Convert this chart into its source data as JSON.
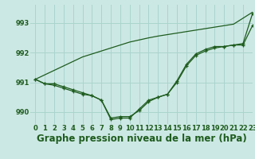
{
  "title": "Graphe pression niveau de la mer (hPa)",
  "background_color": "#cce8e4",
  "grid_color": "#aad4ce",
  "line_color": "#1e5c1e",
  "xlim": [
    -0.5,
    23
  ],
  "ylim": [
    989.6,
    993.6
  ],
  "yticks": [
    990,
    991,
    992,
    993
  ],
  "xtick_labels": [
    "0",
    "1",
    "2",
    "3",
    "4",
    "5",
    "6",
    "7",
    "8",
    "9",
    "10",
    "11",
    "12",
    "13",
    "14",
    "15",
    "16",
    "17",
    "18",
    "19",
    "20",
    "21",
    "22",
    "23"
  ],
  "series_straight": [
    991.1,
    991.25,
    991.4,
    991.55,
    991.7,
    991.85,
    991.95,
    992.05,
    992.15,
    992.25,
    992.35,
    992.42,
    992.49,
    992.55,
    992.6,
    992.65,
    992.7,
    992.75,
    992.8,
    992.85,
    992.9,
    992.95,
    993.15,
    993.35
  ],
  "series_curve1": [
    991.1,
    990.95,
    990.95,
    990.85,
    990.75,
    990.65,
    990.55,
    990.4,
    989.8,
    989.85,
    989.85,
    990.05,
    990.35,
    990.5,
    990.6,
    991.0,
    991.55,
    991.9,
    992.05,
    992.15,
    992.2,
    992.25,
    992.25,
    992.9
  ],
  "series_curve2": [
    991.1,
    990.95,
    990.9,
    990.8,
    990.7,
    990.6,
    990.55,
    990.4,
    989.75,
    989.8,
    989.8,
    990.1,
    990.4,
    990.5,
    990.6,
    991.05,
    991.6,
    991.95,
    992.1,
    992.2,
    992.2,
    992.25,
    992.3,
    993.3
  ],
  "title_fontsize": 8.5,
  "tick_fontsize": 6.0,
  "tick_color": "#1e5c1e"
}
